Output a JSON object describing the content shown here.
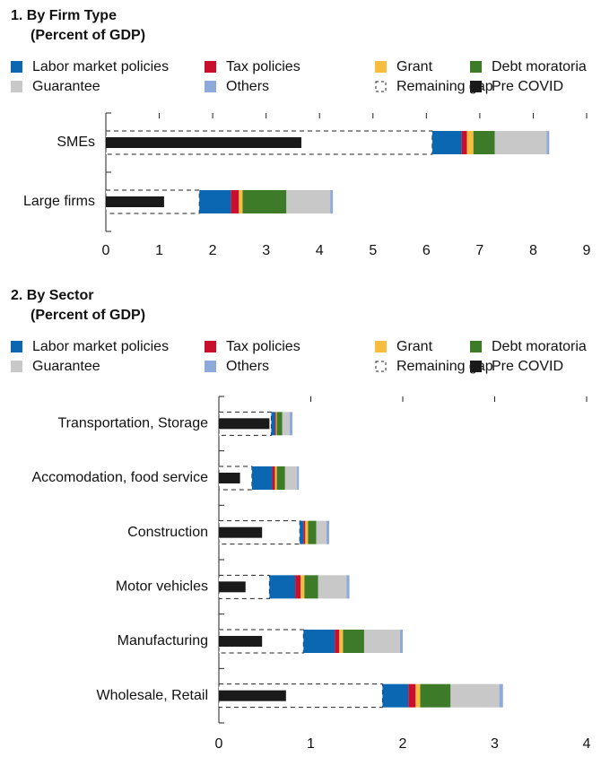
{
  "chart_data": [
    {
      "type": "bar",
      "orientation": "horizontal",
      "title": "1. By Firm Type",
      "subtitle": "(Percent of GDP)",
      "categories": [
        "SMEs",
        "Large firms"
      ],
      "series": [
        {
          "name": "Remaining gap",
          "color": "#ffffff",
          "bar_style": "dashed",
          "values": [
            6.11,
            1.75
          ]
        },
        {
          "name": "Labor market policies",
          "color": "#0b67b2",
          "values": [
            0.55,
            0.59
          ]
        },
        {
          "name": "Tax policies",
          "color": "#c8102e",
          "values": [
            0.1,
            0.15
          ]
        },
        {
          "name": "Grant",
          "color": "#f6bd41",
          "values": [
            0.12,
            0.07
          ]
        },
        {
          "name": "Debt moratoria",
          "color": "#3e7b28",
          "values": [
            0.4,
            0.82
          ]
        },
        {
          "name": "Guarantee",
          "color": "#c8c8c8",
          "values": [
            0.97,
            0.82
          ]
        },
        {
          "name": "Others",
          "color": "#8eaadb",
          "values": [
            0.05,
            0.05
          ]
        },
        {
          "name": "Pre COVID",
          "color": "#1a1a1a",
          "bar_style": "thin",
          "values": [
            3.66,
            1.09
          ]
        }
      ],
      "xlim": [
        0,
        9
      ],
      "xticks": [
        0,
        1,
        2,
        3,
        4,
        5,
        6,
        7,
        8,
        9
      ]
    },
    {
      "type": "bar",
      "orientation": "horizontal",
      "title": "2. By Sector",
      "subtitle": "(Percent of GDP)",
      "categories": [
        "Transportation, Storage",
        "Accomodation, food service",
        "Construction",
        "Motor vehicles",
        "Manufacturing",
        "Wholesale, Retail"
      ],
      "series": [
        {
          "name": "Remaining gap",
          "color": "#ffffff",
          "bar_style": "dashed",
          "values": [
            0.57,
            0.36,
            0.88,
            0.55,
            0.92,
            1.78
          ]
        },
        {
          "name": "Labor market policies",
          "color": "#0b67b2",
          "values": [
            0.04,
            0.22,
            0.04,
            0.28,
            0.34,
            0.28
          ]
        },
        {
          "name": "Tax policies",
          "color": "#c8102e",
          "values": [
            0.01,
            0.03,
            0.02,
            0.06,
            0.05,
            0.08
          ]
        },
        {
          "name": "Grant",
          "color": "#f6bd41",
          "values": [
            0.01,
            0.02,
            0.03,
            0.04,
            0.04,
            0.05
          ]
        },
        {
          "name": "Debt moratoria",
          "color": "#3e7b28",
          "values": [
            0.06,
            0.09,
            0.09,
            0.15,
            0.23,
            0.33
          ]
        },
        {
          "name": "Guarantee",
          "color": "#c8c8c8",
          "values": [
            0.08,
            0.13,
            0.11,
            0.31,
            0.39,
            0.53
          ]
        },
        {
          "name": "Others",
          "color": "#8eaadb",
          "values": [
            0.03,
            0.02,
            0.03,
            0.03,
            0.03,
            0.04
          ]
        },
        {
          "name": "Pre COVID",
          "color": "#1a1a1a",
          "bar_style": "thin",
          "values": [
            0.55,
            0.23,
            0.47,
            0.29,
            0.47,
            0.73
          ]
        }
      ],
      "xlim": [
        0,
        4
      ],
      "xticks": [
        0,
        1,
        2,
        3,
        4
      ]
    }
  ]
}
